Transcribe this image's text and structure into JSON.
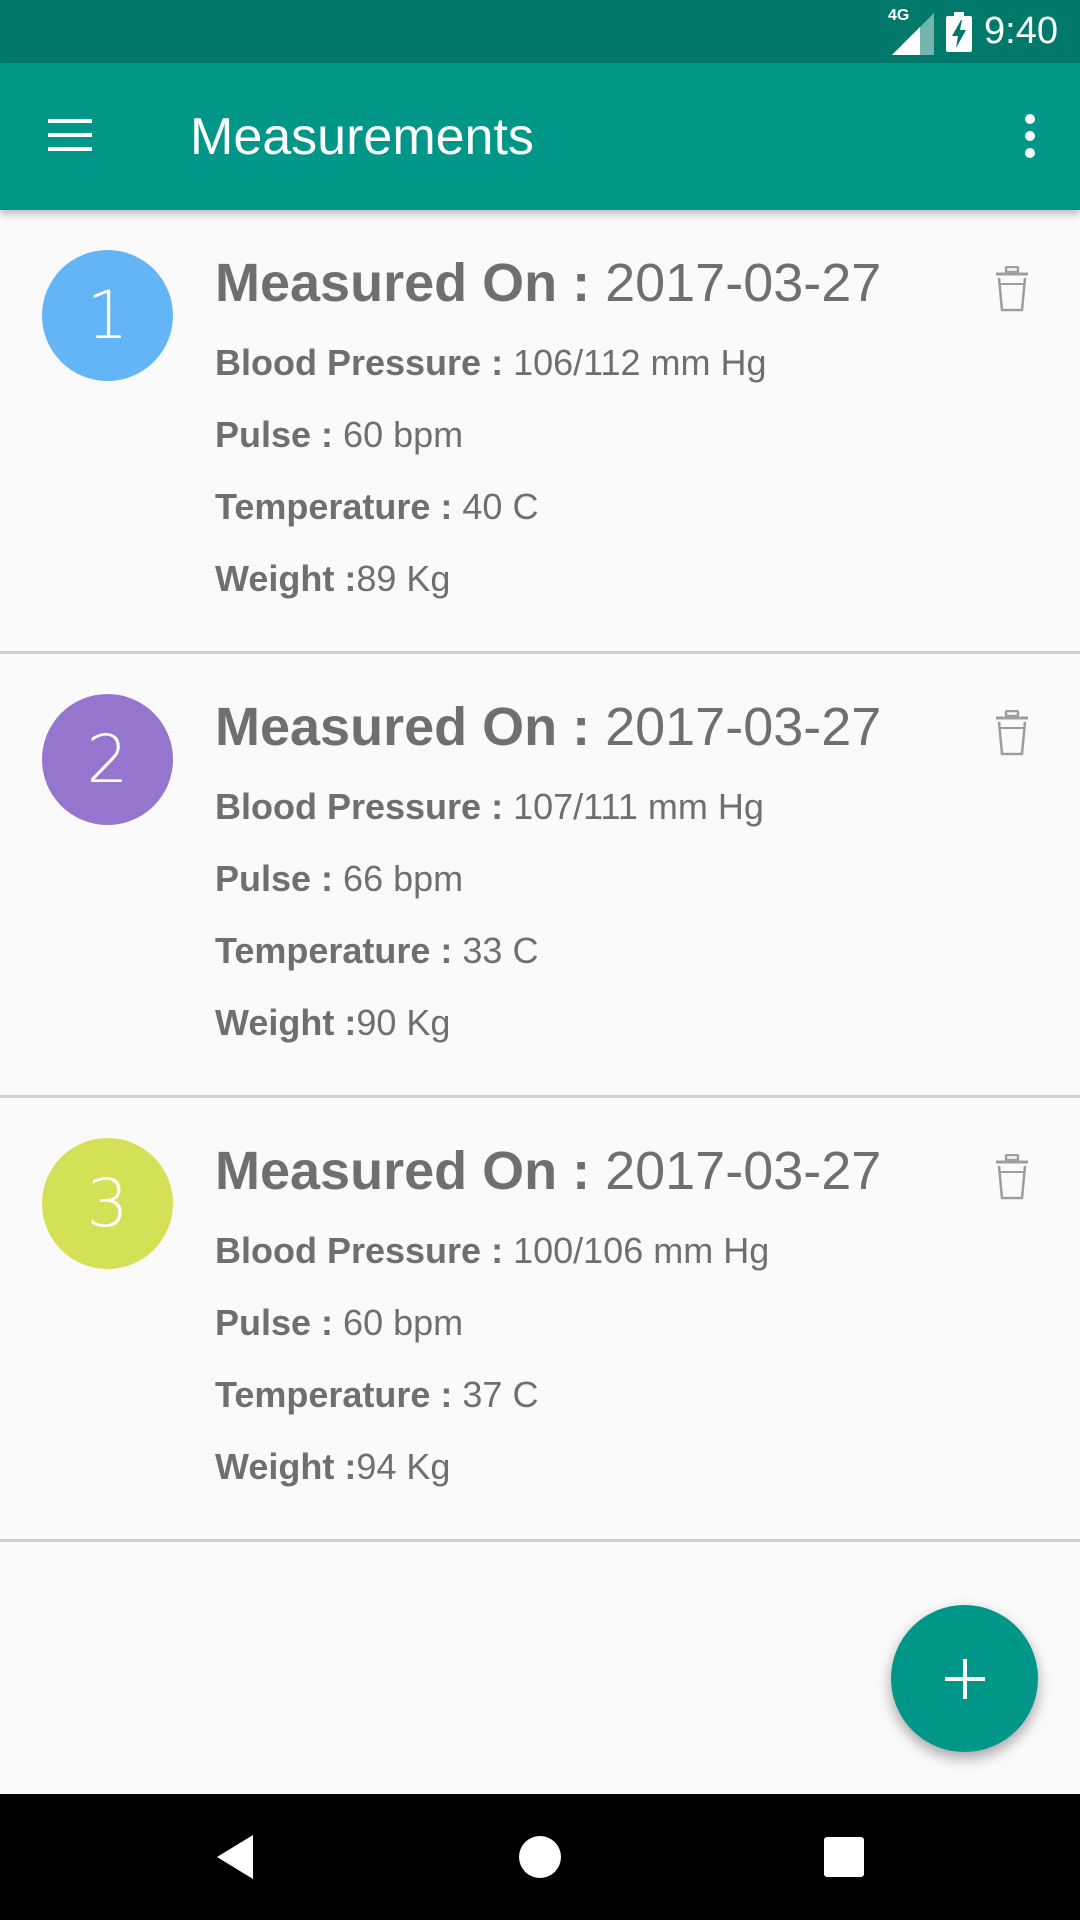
{
  "status_bar": {
    "network": "4G",
    "time": "9:40"
  },
  "app_bar": {
    "title": "Measurements"
  },
  "measurements": [
    {
      "index": "1",
      "color": "#64b5f6",
      "measured_label": "Measured On : ",
      "date": "2017-03-27",
      "bp_label": "Blood Pressure : ",
      "bp": "106/112 mm Hg",
      "pulse_label": "Pulse : ",
      "pulse": "60 bpm",
      "temp_label": "Temperature : ",
      "temp": "40 C",
      "weight_label": "Weight :",
      "weight": "89 Kg"
    },
    {
      "index": "2",
      "color": "#9575cd",
      "measured_label": "Measured On : ",
      "date": "2017-03-27",
      "bp_label": "Blood Pressure : ",
      "bp": "107/111 mm Hg",
      "pulse_label": "Pulse : ",
      "pulse": "66 bpm",
      "temp_label": "Temperature : ",
      "temp": "33 C",
      "weight_label": "Weight :",
      "weight": "90 Kg"
    },
    {
      "index": "3",
      "color": "#d4e157",
      "measured_label": "Measured On : ",
      "date": "2017-03-27",
      "bp_label": "Blood Pressure : ",
      "bp": "100/106 mm Hg",
      "pulse_label": "Pulse : ",
      "pulse": "60 bpm",
      "temp_label": "Temperature : ",
      "temp": "37 C",
      "weight_label": "Weight :",
      "weight": "94 Kg"
    }
  ],
  "icons": {
    "menu": "menu-icon",
    "overflow": "more-vert-icon",
    "delete": "trash-icon",
    "fab": "plus-icon",
    "back": "back-icon",
    "home": "home-icon",
    "recents": "recents-icon"
  },
  "colors": {
    "primary": "#009688",
    "primary_dark": "#00796b",
    "text": "#6f6f6f"
  }
}
